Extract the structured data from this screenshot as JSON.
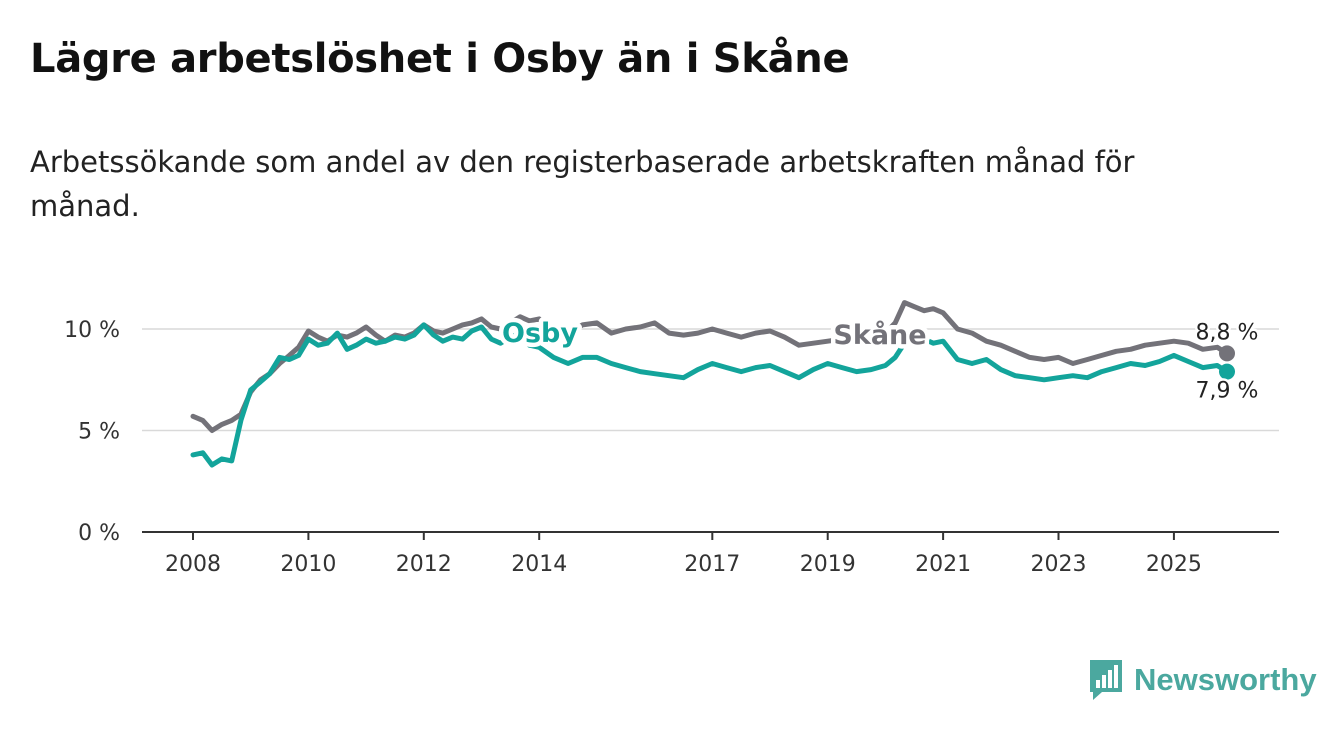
{
  "title": "Lägre arbetslöshet i Osby än i Skåne",
  "subtitle": "Arbetssökande som andel av den registerbaserade arbetskraften månad för månad.",
  "brand": {
    "name": "Newsworthy",
    "icon": "newsworthy-logo-icon",
    "color": "#4ba89f"
  },
  "chart_data": {
    "type": "line",
    "title": "Lägre arbetslöshet i Osby än i Skåne",
    "xlabel": "",
    "ylabel": "",
    "x_ticks": [
      "2008",
      "2010",
      "2012",
      "2014",
      "2017",
      "2019",
      "2021",
      "2023",
      "2025"
    ],
    "y_ticks": [
      0,
      5,
      10
    ],
    "y_tick_labels": [
      "0 %",
      "5 %",
      "10 %"
    ],
    "xlim": [
      2008,
      2026.5
    ],
    "ylim": [
      0,
      12.5
    ],
    "grid": true,
    "series": [
      {
        "name": "Skåne",
        "label": "Skåne",
        "color": "#737279",
        "end_label": "8,8 %",
        "x": [
          2008.0,
          2008.17,
          2008.33,
          2008.5,
          2008.67,
          2008.83,
          2009.0,
          2009.17,
          2009.33,
          2009.5,
          2009.67,
          2009.83,
          2010.0,
          2010.17,
          2010.33,
          2010.5,
          2010.67,
          2010.83,
          2011.0,
          2011.17,
          2011.33,
          2011.5,
          2011.67,
          2011.83,
          2012.0,
          2012.17,
          2012.33,
          2012.5,
          2012.67,
          2012.83,
          2013.0,
          2013.17,
          2013.33,
          2013.5,
          2013.67,
          2013.83,
          2014.0,
          2014.25,
          2014.5,
          2014.75,
          2015.0,
          2015.25,
          2015.5,
          2015.75,
          2016.0,
          2016.25,
          2016.5,
          2016.75,
          2017.0,
          2017.25,
          2017.5,
          2017.75,
          2018.0,
          2018.25,
          2018.5,
          2018.75,
          2019.0,
          2019.25,
          2019.5,
          2019.75,
          2020.0,
          2020.17,
          2020.33,
          2020.5,
          2020.67,
          2020.83,
          2021.0,
          2021.25,
          2021.5,
          2021.75,
          2022.0,
          2022.25,
          2022.5,
          2022.75,
          2023.0,
          2023.25,
          2023.5,
          2023.75,
          2024.0,
          2024.25,
          2024.5,
          2024.75,
          2025.0,
          2025.25,
          2025.5,
          2025.75,
          2025.92
        ],
        "values": [
          5.7,
          5.5,
          5.0,
          5.3,
          5.5,
          5.8,
          6.9,
          7.5,
          7.8,
          8.3,
          8.7,
          9.1,
          9.9,
          9.6,
          9.4,
          9.7,
          9.6,
          9.8,
          10.1,
          9.7,
          9.4,
          9.7,
          9.6,
          9.8,
          10.2,
          9.9,
          9.8,
          10.0,
          10.2,
          10.3,
          10.5,
          10.1,
          10.0,
          10.3,
          10.6,
          10.4,
          10.5,
          10.0,
          9.8,
          10.2,
          10.3,
          9.8,
          10.0,
          10.1,
          10.3,
          9.8,
          9.7,
          9.8,
          10.0,
          9.8,
          9.6,
          9.8,
          9.9,
          9.6,
          9.2,
          9.3,
          9.4,
          9.5,
          9.6,
          9.7,
          9.8,
          10.3,
          11.3,
          11.1,
          10.9,
          11.0,
          10.8,
          10.0,
          9.8,
          9.4,
          9.2,
          8.9,
          8.6,
          8.5,
          8.6,
          8.3,
          8.5,
          8.7,
          8.9,
          9.0,
          9.2,
          9.3,
          9.4,
          9.3,
          9.0,
          9.1,
          8.8
        ]
      },
      {
        "name": "Osby",
        "label": "Osby",
        "color": "#13a49b",
        "end_label": "7,9 %",
        "x": [
          2008.0,
          2008.17,
          2008.33,
          2008.5,
          2008.67,
          2008.83,
          2009.0,
          2009.17,
          2009.33,
          2009.5,
          2009.67,
          2009.83,
          2010.0,
          2010.17,
          2010.33,
          2010.5,
          2010.67,
          2010.83,
          2011.0,
          2011.17,
          2011.33,
          2011.5,
          2011.67,
          2011.83,
          2012.0,
          2012.17,
          2012.33,
          2012.5,
          2012.67,
          2012.83,
          2013.0,
          2013.17,
          2013.33,
          2013.5,
          2013.67,
          2013.83,
          2014.0,
          2014.25,
          2014.5,
          2014.75,
          2015.0,
          2015.25,
          2015.5,
          2015.75,
          2016.0,
          2016.25,
          2016.5,
          2016.75,
          2017.0,
          2017.25,
          2017.5,
          2017.75,
          2018.0,
          2018.25,
          2018.5,
          2018.75,
          2019.0,
          2019.25,
          2019.5,
          2019.75,
          2020.0,
          2020.17,
          2020.33,
          2020.5,
          2020.67,
          2020.83,
          2021.0,
          2021.25,
          2021.5,
          2021.75,
          2022.0,
          2022.25,
          2022.5,
          2022.75,
          2023.0,
          2023.25,
          2023.5,
          2023.75,
          2024.0,
          2024.25,
          2024.5,
          2024.75,
          2025.0,
          2025.25,
          2025.5,
          2025.75,
          2025.92
        ],
        "values": [
          3.8,
          3.9,
          3.3,
          3.6,
          3.5,
          5.5,
          7.0,
          7.4,
          7.8,
          8.6,
          8.5,
          8.7,
          9.5,
          9.2,
          9.3,
          9.8,
          9.0,
          9.2,
          9.5,
          9.3,
          9.4,
          9.6,
          9.5,
          9.7,
          10.2,
          9.7,
          9.4,
          9.6,
          9.5,
          9.9,
          10.1,
          9.5,
          9.3,
          9.6,
          9.8,
          9.2,
          9.1,
          8.6,
          8.3,
          8.6,
          8.6,
          8.3,
          8.1,
          7.9,
          7.8,
          7.7,
          7.6,
          8.0,
          8.3,
          8.1,
          7.9,
          8.1,
          8.2,
          7.9,
          7.6,
          8.0,
          8.3,
          8.1,
          7.9,
          8.0,
          8.2,
          8.6,
          9.3,
          9.5,
          9.5,
          9.3,
          9.4,
          8.5,
          8.3,
          8.5,
          8.0,
          7.7,
          7.6,
          7.5,
          7.6,
          7.7,
          7.6,
          7.9,
          8.1,
          8.3,
          8.2,
          8.4,
          8.7,
          8.4,
          8.1,
          8.2,
          7.9
        ]
      }
    ]
  }
}
